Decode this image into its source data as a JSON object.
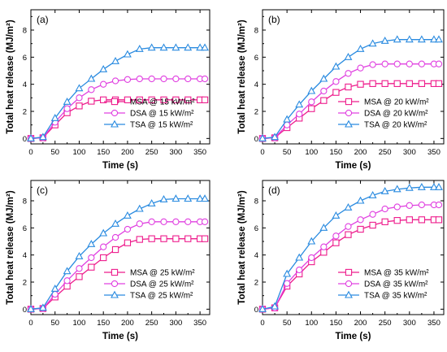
{
  "chart_data": [
    {
      "type": "line",
      "panel_label": "(a)",
      "xlabel": "Time (s)",
      "ylabel": "Total heat release (MJ/m²)",
      "xlim": [
        0,
        370
      ],
      "ylim": [
        -0.4,
        9.5
      ],
      "xticks": [
        0,
        50,
        100,
        150,
        200,
        250,
        300,
        350
      ],
      "yticks": [
        0,
        2,
        4,
        6,
        8
      ],
      "legend_position": "lower-right",
      "x": [
        0,
        25,
        50,
        75,
        100,
        125,
        150,
        175,
        200,
        225,
        250,
        275,
        300,
        325,
        350,
        360
      ],
      "series": [
        {
          "name": "MSA @ 15 kW/m²",
          "color": "#ee1c8c",
          "marker": "square",
          "values": [
            0.0,
            0.05,
            1.0,
            1.9,
            2.4,
            2.75,
            2.85,
            2.85,
            2.85,
            2.85,
            2.85,
            2.85,
            2.85,
            2.85,
            2.85,
            2.85
          ]
        },
        {
          "name": "DSA @ 15 kW/m²",
          "color": "#e040e0",
          "marker": "circle",
          "values": [
            0.0,
            0.05,
            1.2,
            2.2,
            3.0,
            3.6,
            4.0,
            4.25,
            4.35,
            4.4,
            4.4,
            4.4,
            4.4,
            4.4,
            4.4,
            4.4
          ]
        },
        {
          "name": "TSA @ 15 kW/m²",
          "color": "#2a8be0",
          "marker": "triangle",
          "values": [
            0.0,
            0.1,
            1.5,
            2.7,
            3.7,
            4.4,
            5.1,
            5.7,
            6.2,
            6.6,
            6.7,
            6.7,
            6.7,
            6.7,
            6.7,
            6.7
          ]
        }
      ]
    },
    {
      "type": "line",
      "panel_label": "(b)",
      "xlabel": "Time (s)",
      "ylabel": "Total heat release (MJ/m²)",
      "xlim": [
        0,
        370
      ],
      "ylim": [
        -0.4,
        9.5
      ],
      "xticks": [
        0,
        50,
        100,
        150,
        200,
        250,
        300,
        350
      ],
      "yticks": [
        0,
        2,
        4,
        6,
        8
      ],
      "legend_position": "lower-right",
      "x": [
        0,
        25,
        50,
        75,
        100,
        125,
        150,
        175,
        200,
        225,
        250,
        275,
        300,
        325,
        350,
        360
      ],
      "series": [
        {
          "name": "MSA @ 20 kW/m²",
          "color": "#ee1c8c",
          "marker": "square",
          "values": [
            0.0,
            0.05,
            0.8,
            1.5,
            2.2,
            2.8,
            3.4,
            3.8,
            4.0,
            4.05,
            4.05,
            4.05,
            4.05,
            4.05,
            4.05,
            4.05
          ]
        },
        {
          "name": "DSA @ 20 kW/m²",
          "color": "#e040e0",
          "marker": "circle",
          "values": [
            0.0,
            0.05,
            1.0,
            1.8,
            2.7,
            3.5,
            4.2,
            4.8,
            5.2,
            5.45,
            5.5,
            5.5,
            5.5,
            5.5,
            5.5,
            5.5
          ]
        },
        {
          "name": "TSA @ 20 kW/m²",
          "color": "#2a8be0",
          "marker": "triangle",
          "values": [
            0.0,
            0.1,
            1.4,
            2.5,
            3.5,
            4.4,
            5.3,
            6.0,
            6.6,
            7.0,
            7.2,
            7.3,
            7.3,
            7.3,
            7.3,
            7.3
          ]
        }
      ]
    },
    {
      "type": "line",
      "panel_label": "(c)",
      "xlabel": "Time (s)",
      "ylabel": "Total heat release (MJ/m²)",
      "xlim": [
        0,
        370
      ],
      "ylim": [
        -0.4,
        9.5
      ],
      "xticks": [
        0,
        50,
        100,
        150,
        200,
        250,
        300,
        350
      ],
      "yticks": [
        0,
        2,
        4,
        6,
        8
      ],
      "legend_position": "lower-right",
      "x": [
        0,
        25,
        50,
        75,
        100,
        125,
        150,
        175,
        200,
        225,
        250,
        275,
        300,
        325,
        350,
        360
      ],
      "series": [
        {
          "name": "MSA @ 25 kW/m²",
          "color": "#ee1c8c",
          "marker": "square",
          "values": [
            0.0,
            0.05,
            0.9,
            1.7,
            2.4,
            3.1,
            3.8,
            4.4,
            4.9,
            5.15,
            5.2,
            5.2,
            5.2,
            5.2,
            5.2,
            5.2
          ]
        },
        {
          "name": "DSA @ 25 kW/m²",
          "color": "#e040e0",
          "marker": "circle",
          "values": [
            0.0,
            0.05,
            1.1,
            2.1,
            3.0,
            3.8,
            4.6,
            5.3,
            5.9,
            6.3,
            6.45,
            6.45,
            6.45,
            6.45,
            6.45,
            6.45
          ]
        },
        {
          "name": "TSA @ 25 kW/m²",
          "color": "#2a8be0",
          "marker": "triangle",
          "values": [
            0.0,
            0.1,
            1.5,
            2.8,
            3.9,
            4.8,
            5.6,
            6.3,
            6.9,
            7.4,
            7.8,
            8.1,
            8.15,
            8.15,
            8.15,
            8.15
          ]
        }
      ]
    },
    {
      "type": "line",
      "panel_label": "(d)",
      "xlabel": "Time (s)",
      "ylabel": "Total heat release (MJ/m²)",
      "xlim": [
        0,
        370
      ],
      "ylim": [
        -0.4,
        9.5
      ],
      "xticks": [
        0,
        50,
        100,
        150,
        200,
        250,
        300,
        350
      ],
      "yticks": [
        0,
        2,
        4,
        6,
        8
      ],
      "legend_position": "lower-right",
      "x": [
        0,
        25,
        50,
        75,
        100,
        125,
        150,
        175,
        200,
        225,
        250,
        275,
        300,
        325,
        350,
        360
      ],
      "series": [
        {
          "name": "MSA @ 35 kW/m²",
          "color": "#ee1c8c",
          "marker": "square",
          "values": [
            0.0,
            0.1,
            1.7,
            2.6,
            3.5,
            4.2,
            4.9,
            5.5,
            5.9,
            6.2,
            6.45,
            6.55,
            6.6,
            6.6,
            6.6,
            6.6
          ]
        },
        {
          "name": "DSA @ 35 kW/m²",
          "color": "#e040e0",
          "marker": "circle",
          "values": [
            0.0,
            0.1,
            1.9,
            2.9,
            3.8,
            4.6,
            5.4,
            6.1,
            6.6,
            7.0,
            7.4,
            7.55,
            7.65,
            7.7,
            7.7,
            7.7
          ]
        },
        {
          "name": "TSA @ 35 kW/m²",
          "color": "#2a8be0",
          "marker": "triangle",
          "values": [
            0.0,
            0.2,
            2.6,
            3.8,
            5.0,
            6.0,
            6.9,
            7.5,
            8.0,
            8.4,
            8.7,
            8.85,
            8.95,
            9.0,
            9.0,
            9.0
          ]
        }
      ]
    }
  ]
}
